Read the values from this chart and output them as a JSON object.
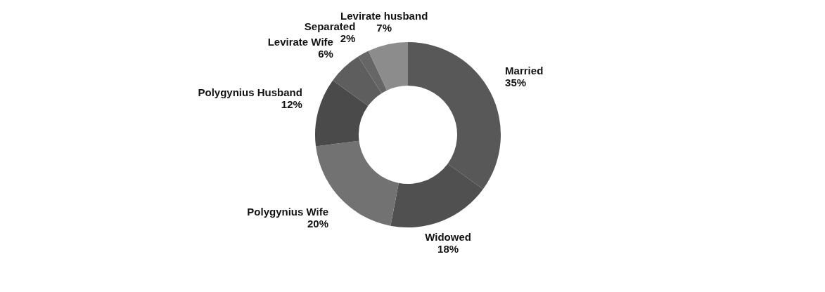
{
  "chart_data": {
    "type": "donut",
    "categories": [
      "Married",
      "Widowed",
      "Polygynius Wife",
      "Polygynius  Husband",
      "Levirate Wife",
      "Separated",
      "Levirate husband"
    ],
    "values": [
      35,
      18,
      20,
      12,
      6,
      2,
      7
    ],
    "value_labels": [
      "35%",
      "18%",
      "20%",
      "12%",
      "6%",
      "2%",
      "7%"
    ],
    "colors": [
      "#585858",
      "#505050",
      "#727272",
      "#4a4a4a",
      "#5e5e5e",
      "#666666",
      "#8c8c8c"
    ]
  }
}
